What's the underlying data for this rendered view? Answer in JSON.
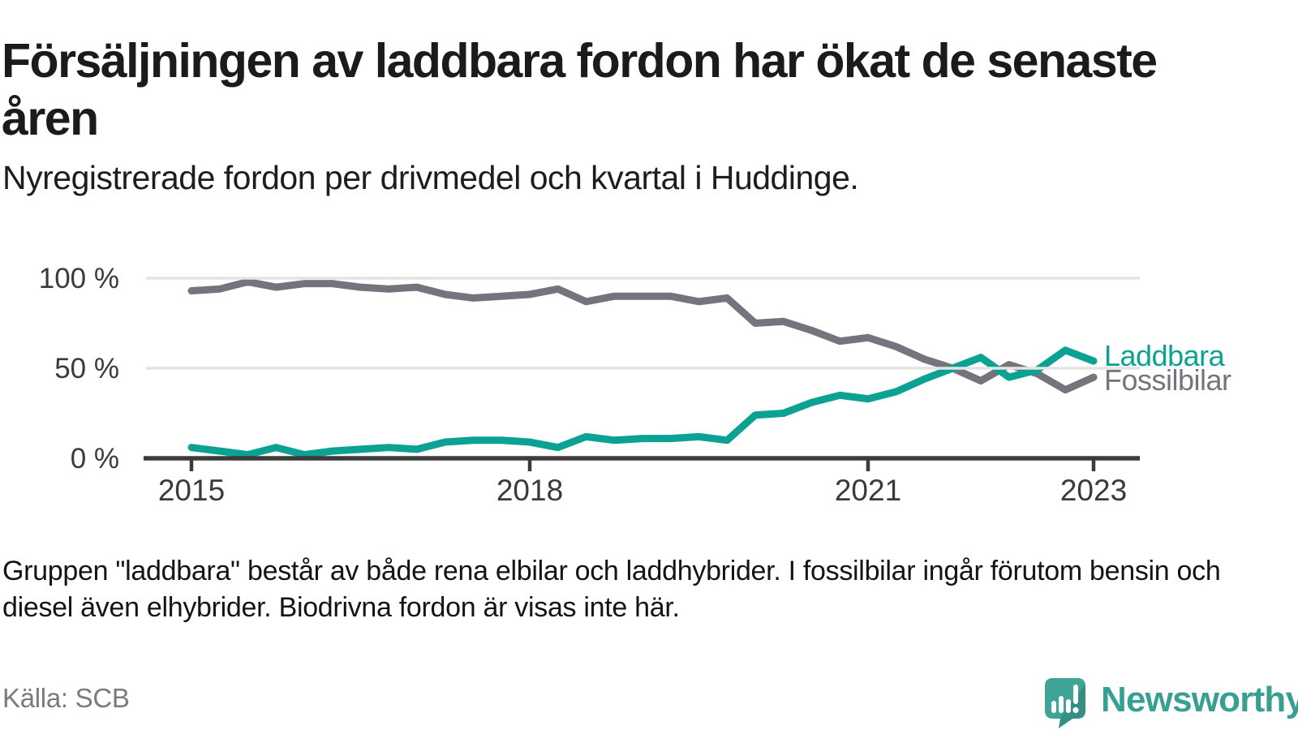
{
  "header": {
    "title": "Försäljningen av laddbara fordon har ökat de senaste åren",
    "subtitle": "Nyregistrerade fordon per drivmedel och kvartal i Huddinge."
  },
  "chart_data": {
    "type": "line",
    "x_unit": "quarter",
    "categories": [
      "2015K1",
      "2015K2",
      "2015K3",
      "2015K4",
      "2016K1",
      "2016K2",
      "2016K3",
      "2016K4",
      "2017K1",
      "2017K2",
      "2017K3",
      "2017K4",
      "2018K1",
      "2018K2",
      "2018K3",
      "2018K4",
      "2019K1",
      "2019K2",
      "2019K3",
      "2019K4",
      "2020K1",
      "2020K2",
      "2020K3",
      "2020K4",
      "2021K1",
      "2021K2",
      "2021K3",
      "2021K4",
      "2022K1",
      "2022K2",
      "2022K3",
      "2022K4",
      "2023K1"
    ],
    "series": [
      {
        "name": "Laddbara",
        "color": "#0ba294",
        "values": [
          6,
          4,
          2,
          6,
          2,
          4,
          5,
          6,
          5,
          9,
          10,
          10,
          9,
          6,
          12,
          10,
          11,
          11,
          12,
          10,
          24,
          25,
          31,
          35,
          33,
          37,
          44,
          50,
          56,
          45,
          49,
          60,
          54
        ]
      },
      {
        "name": "Fossilbilar",
        "color": "#75747d",
        "values": [
          93,
          94,
          98,
          95,
          97,
          97,
          95,
          94,
          95,
          91,
          89,
          90,
          91,
          94,
          87,
          90,
          90,
          90,
          87,
          89,
          75,
          76,
          71,
          65,
          67,
          62,
          55,
          50,
          43,
          52,
          47,
          38,
          45
        ]
      }
    ],
    "ylim": [
      0,
      100
    ],
    "yticks": [
      {
        "value": 100,
        "label": "100 %"
      },
      {
        "value": 50,
        "label": "50 %"
      },
      {
        "value": 0,
        "label": "0 %"
      }
    ],
    "xticks": [
      {
        "index": 0,
        "label": "2015"
      },
      {
        "index": 12,
        "label": "2018"
      },
      {
        "index": 24,
        "label": "2021"
      },
      {
        "index": 32,
        "label": "2023"
      }
    ],
    "grid": "horizontal",
    "legend_position": "right-of-line-ends",
    "axis_color": "#3b3b3b",
    "grid_color": "#e4e4e4"
  },
  "footnote": "Gruppen \"laddbara\" består av både rena elbilar och laddhybrider. I fossilbilar ingår förutom bensin och diesel även elhybrider. Biodrivna fordon är visas inte här.",
  "source": "Källa: SCB",
  "branding": {
    "name": "Newsworthy",
    "icon": "newsworthy-logo",
    "text_color": "#38a093",
    "icon_color": "#3fa396"
  }
}
